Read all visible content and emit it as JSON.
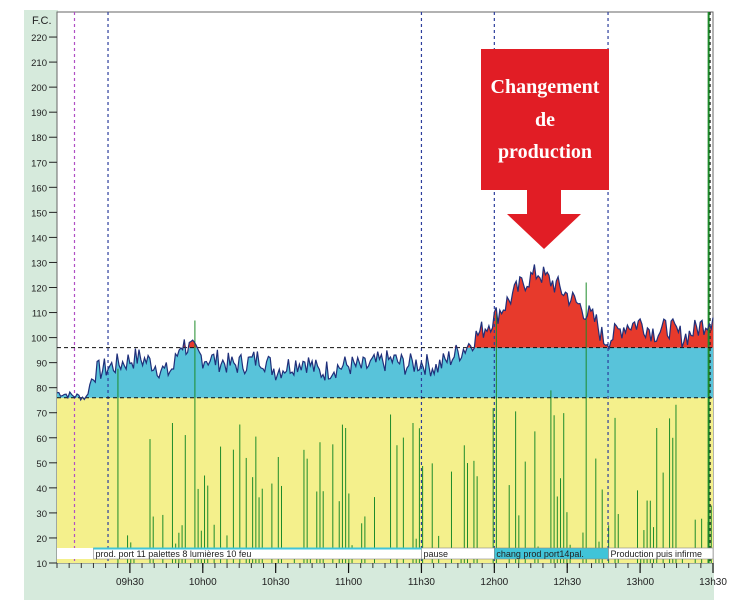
{
  "chart_data": {
    "type": "area",
    "ylabel": "F.C.",
    "ylim": [
      10,
      230
    ],
    "y_ticks": [
      10,
      20,
      30,
      40,
      50,
      60,
      70,
      80,
      90,
      100,
      110,
      120,
      130,
      140,
      150,
      160,
      170,
      180,
      190,
      200,
      210,
      220
    ],
    "x_ticks": [
      "09h30",
      "10h00",
      "10h30",
      "11h00",
      "11h30",
      "12h00",
      "12h30",
      "13h00",
      "13h30"
    ],
    "x_range_hours": [
      9.0,
      13.5
    ],
    "thresholds": {
      "upper": 96,
      "lower": 76
    },
    "annotation": "Changement de production",
    "annotation_lines": [
      "Changement",
      "de",
      "production"
    ],
    "segments": [
      {
        "label": "prod. port 11 palettes 8 lumières 10 feu",
        "start": "09h15",
        "end": "11h30"
      },
      {
        "label": "pause",
        "start": "11h30",
        "end": "12h00"
      },
      {
        "label": "chang prod port14pal.",
        "start": "12h00",
        "end": "12h47"
      },
      {
        "label": "Production puis infirme",
        "start": "12h47",
        "end": "13h30"
      }
    ],
    "series": [
      {
        "values": [
          [
            9.0,
            78
          ],
          [
            9.1,
            77
          ],
          [
            9.2,
            76
          ],
          [
            9.25,
            86
          ],
          [
            9.35,
            88
          ],
          [
            9.45,
            90
          ],
          [
            9.55,
            92
          ],
          [
            9.65,
            90
          ],
          [
            9.75,
            86
          ],
          [
            9.8,
            88
          ],
          [
            9.85,
            98
          ],
          [
            10.0,
            92
          ],
          [
            10.1,
            91
          ],
          [
            10.2,
            89
          ],
          [
            10.3,
            90
          ],
          [
            10.4,
            92
          ],
          [
            10.5,
            87
          ],
          [
            10.6,
            89
          ],
          [
            10.7,
            91
          ],
          [
            10.8,
            86
          ],
          [
            10.9,
            88
          ],
          [
            11.0,
            89
          ],
          [
            11.1,
            88
          ],
          [
            11.2,
            90
          ],
          [
            11.3,
            91
          ],
          [
            11.4,
            89
          ],
          [
            11.5,
            90
          ],
          [
            11.6,
            88
          ],
          [
            11.7,
            92
          ],
          [
            11.8,
            96
          ],
          [
            11.9,
            102
          ],
          [
            12.0,
            108
          ],
          [
            12.1,
            115
          ],
          [
            12.2,
            122
          ],
          [
            12.3,
            126
          ],
          [
            12.4,
            122
          ],
          [
            12.5,
            117
          ],
          [
            12.6,
            112
          ],
          [
            12.7,
            106
          ],
          [
            12.75,
            99
          ],
          [
            12.8,
            100
          ],
          [
            12.9,
            105
          ],
          [
            13.0,
            106
          ],
          [
            13.1,
            102
          ],
          [
            13.2,
            104
          ],
          [
            13.3,
            100
          ],
          [
            13.4,
            104
          ],
          [
            13.5,
            108
          ]
        ]
      }
    ],
    "colors": {
      "hr_line": "#1f2f7a",
      "above_upper": "#e73a2c",
      "between": "#58c3da",
      "below_lower": "#f4f08c",
      "activity_spikes": "#1d8b2a",
      "callout": "#e11d25",
      "axis_background": "#d6eadc",
      "segment_bar": "#40c4d8"
    }
  }
}
